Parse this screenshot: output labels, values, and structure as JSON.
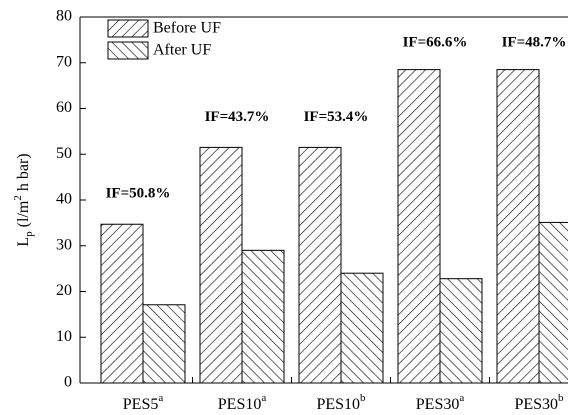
{
  "chart_data": {
    "type": "bar",
    "categories": [
      "PES5",
      "PES10",
      "PES10",
      "PES30",
      "PES30"
    ],
    "category_superscripts": [
      "a",
      "a",
      "b",
      "a",
      "b"
    ],
    "series": [
      {
        "name": "Before UF",
        "color": "#000000",
        "hatch": "/",
        "values": [
          34.7,
          51.5,
          51.5,
          68.5,
          68.5
        ]
      },
      {
        "name": "After UF",
        "color": "#000000",
        "hatch": "\\",
        "values": [
          17.1,
          29.0,
          24.0,
          22.8,
          35.1
        ]
      }
    ],
    "annotations": [
      "IF=50.8%",
      "IF=43.7%",
      "IF=53.4%",
      "IF=66.6%",
      "IF=48.7%"
    ],
    "ylabel": {
      "main": "L",
      "sub": "p",
      "unit_start": " (l/m",
      "sup": "2",
      "unit_end": " h bar)"
    },
    "ylim": [
      0,
      80
    ],
    "yticks": [
      0,
      10,
      20,
      30,
      40,
      50,
      60,
      70,
      80
    ],
    "grid": false,
    "legend": "upper left"
  }
}
